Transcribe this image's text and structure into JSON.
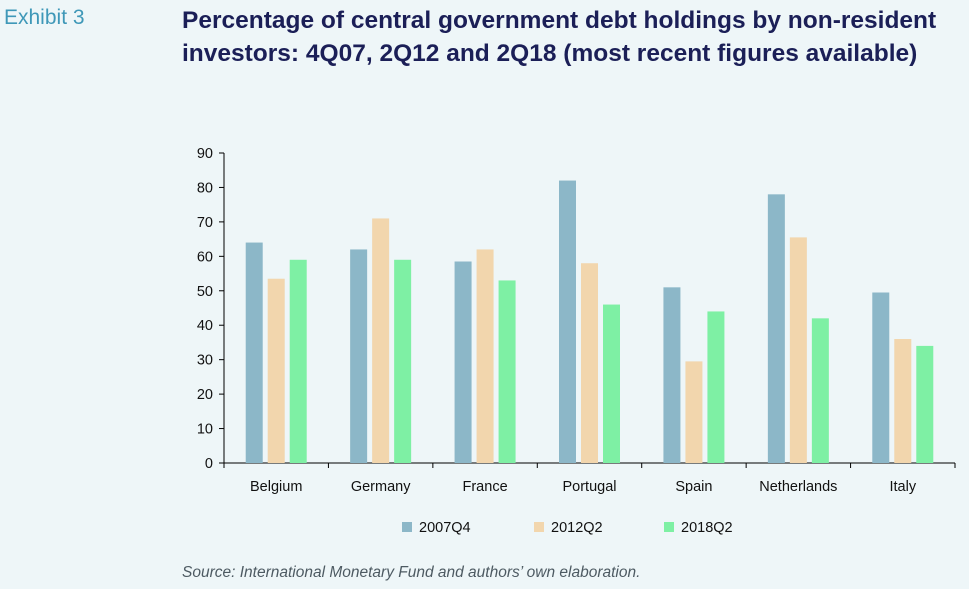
{
  "exhibit_label": "Exhibit 3",
  "source_note": "Source: International Monetary Fund and authors’ own elaboration.",
  "colors": {
    "background": "#eef6f8",
    "title": "#1b1f57",
    "exhibit": "#3f98b8",
    "series": [
      "#8cb7c8",
      "#f2d6ad",
      "#7ef0a4"
    ]
  },
  "chart_data": {
    "type": "bar",
    "title": "Percentage of central government debt holdings by non-resident investors: 4Q07, 2Q12 and 2Q18 (most recent figures available)",
    "xlabel": "",
    "ylabel": "",
    "ylim": [
      0,
      90
    ],
    "yticks": [
      0,
      10,
      20,
      30,
      40,
      50,
      60,
      70,
      80,
      90
    ],
    "grid": false,
    "legend_position": "bottom",
    "categories": [
      "Belgium",
      "Germany",
      "France",
      "Portugal",
      "Spain",
      "Netherlands",
      "Italy"
    ],
    "series": [
      {
        "name": "2007Q4",
        "values": [
          64,
          62,
          58.5,
          82,
          51,
          78,
          49.5
        ]
      },
      {
        "name": "2012Q2",
        "values": [
          53.5,
          71,
          62,
          58,
          29.5,
          65.5,
          36
        ]
      },
      {
        "name": "2018Q2",
        "values": [
          59,
          59,
          53,
          46,
          44,
          42,
          34
        ]
      }
    ]
  }
}
